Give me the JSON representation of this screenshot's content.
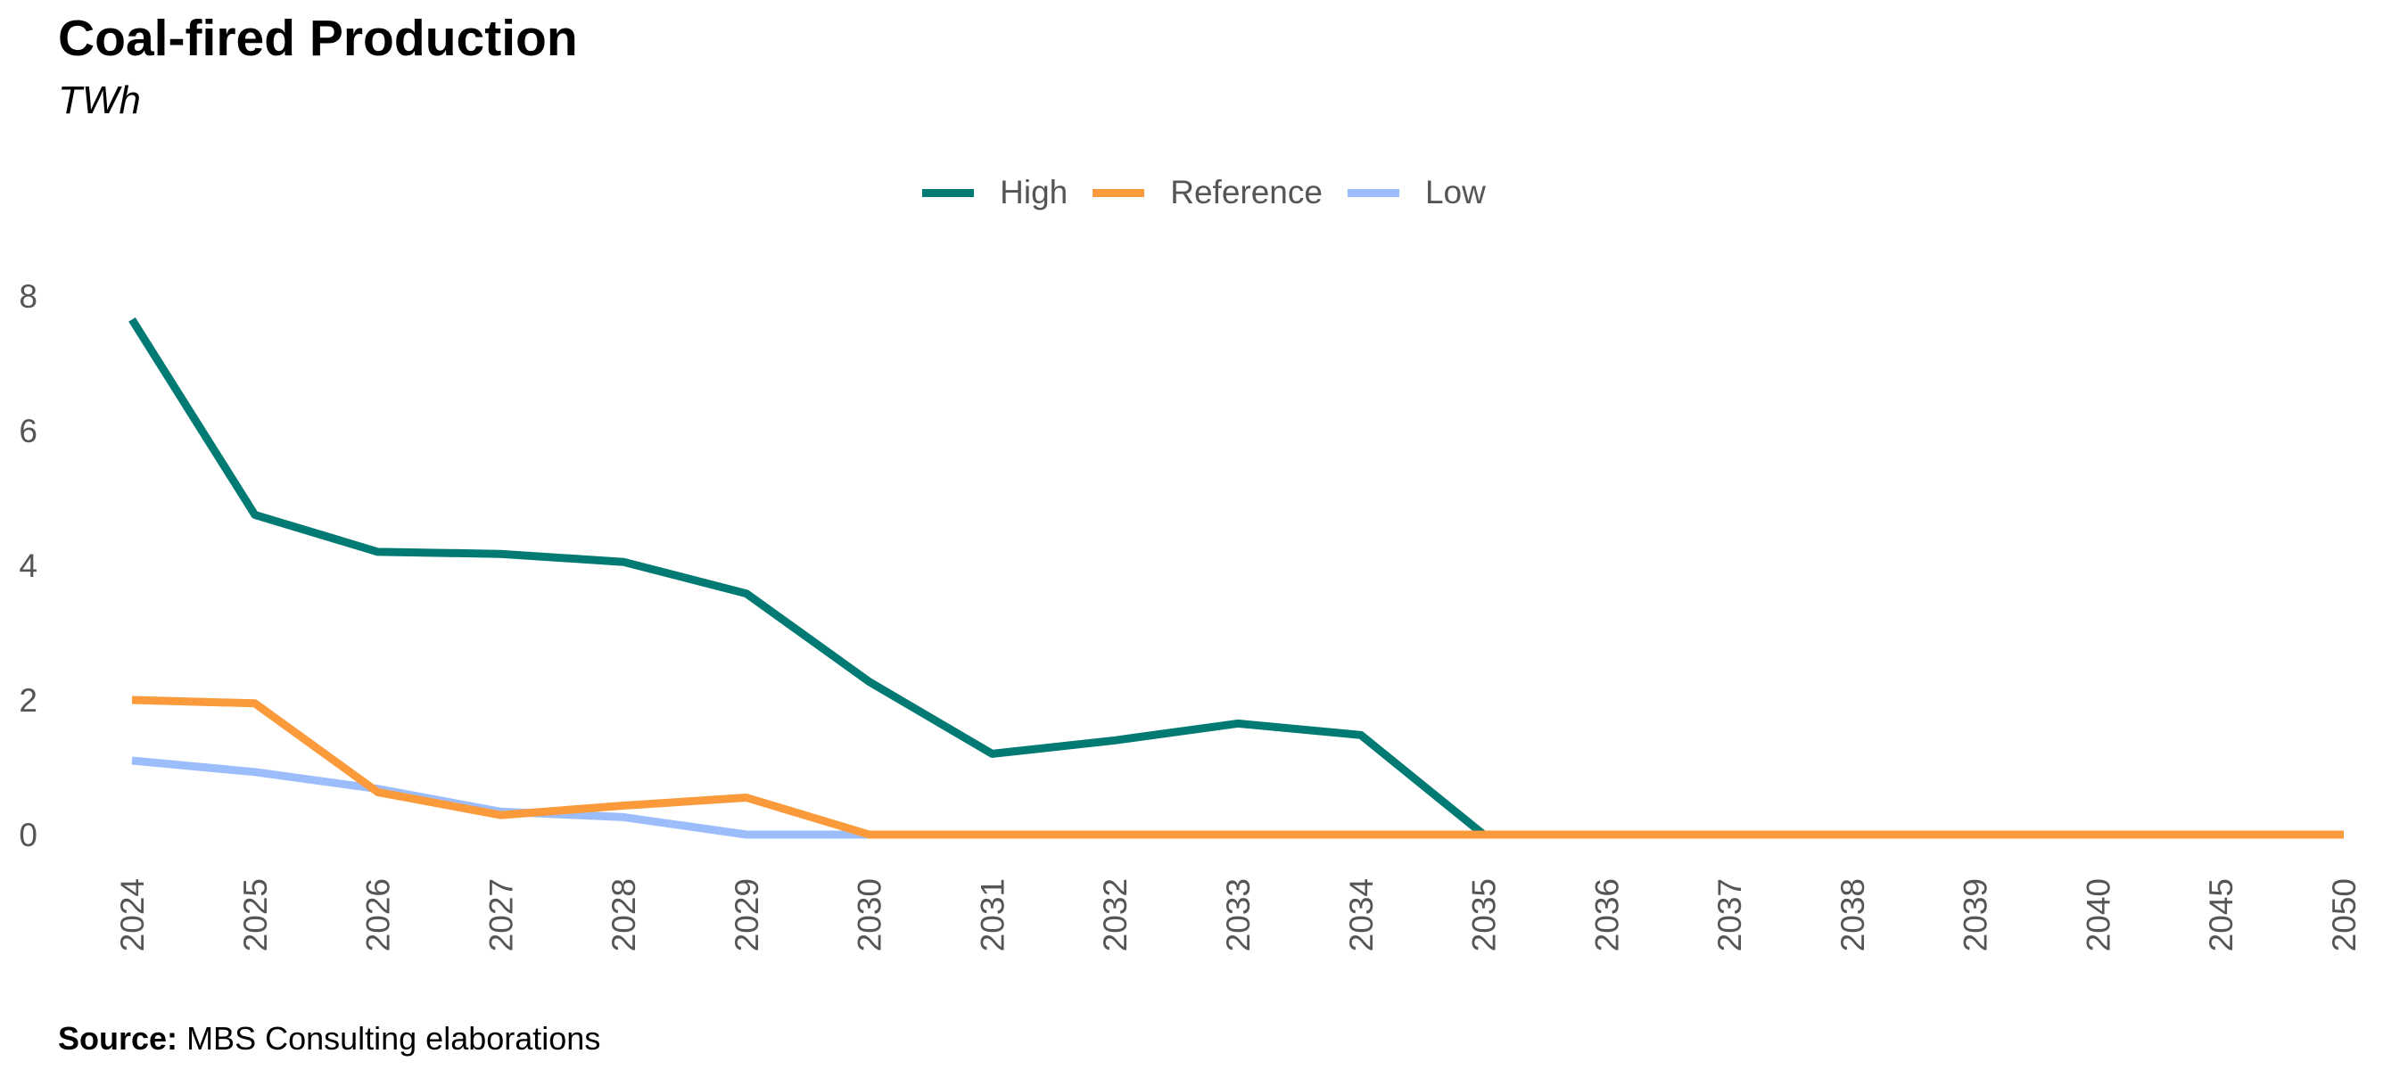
{
  "title": "Coal-fired Production",
  "subtitle": "TWh",
  "source": {
    "label": "Source:",
    "text": "MBS Consulting elaborations"
  },
  "chart_data": {
    "type": "line",
    "title": "Coal-fired Production",
    "ylabel": "TWh",
    "x": [
      "2024",
      "2025",
      "2026",
      "2027",
      "2028",
      "2029",
      "2030",
      "2031",
      "2032",
      "2033",
      "2034",
      "2035",
      "2036",
      "2037",
      "2038",
      "2039",
      "2040",
      "2045",
      "2050"
    ],
    "y_ticks": [
      "0",
      "2",
      "4",
      "6",
      "8"
    ],
    "ylim": [
      0,
      8
    ],
    "grid": false,
    "legend_position": "top-center",
    "series": [
      {
        "name": "High",
        "color": "#007a72",
        "values": [
          7.65,
          4.75,
          4.2,
          4.17,
          4.05,
          3.58,
          2.27,
          1.2,
          1.4,
          1.65,
          1.48,
          0,
          0,
          0,
          0,
          0,
          0,
          0,
          0
        ]
      },
      {
        "name": "Reference",
        "color": "#fb9a3a",
        "values": [
          2.0,
          1.95,
          0.63,
          0.29,
          0.43,
          0.55,
          0,
          0,
          0,
          0,
          0,
          0,
          0,
          0,
          0,
          0,
          0,
          0,
          0
        ]
      },
      {
        "name": "Low",
        "color": "#9cbdfb",
        "values": [
          1.1,
          0.93,
          0.68,
          0.34,
          0.26,
          0,
          0,
          0,
          0,
          0,
          0,
          0,
          0,
          0,
          0,
          0,
          0,
          0,
          0
        ]
      }
    ]
  }
}
